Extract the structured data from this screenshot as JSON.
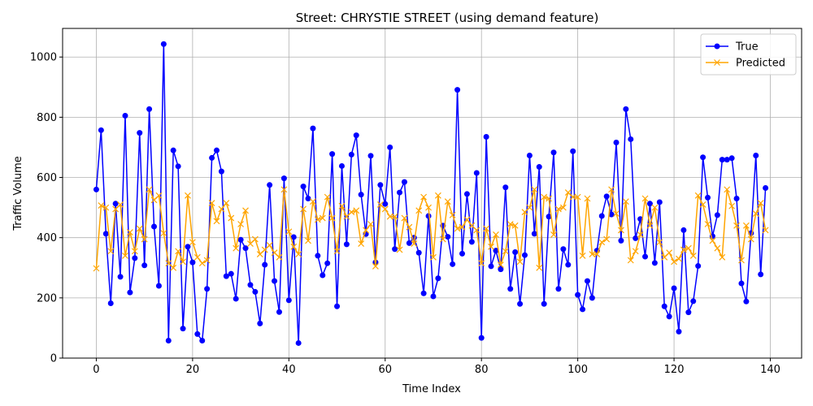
{
  "chart_data": {
    "type": "line",
    "title": "Street: CHRYSTIE STREET (using demand feature)",
    "xlabel": "Time Index",
    "ylabel": "Traffic Volume",
    "xlim": [
      -7,
      146.5
    ],
    "ylim": [
      0,
      1095
    ],
    "xticks": [
      0,
      20,
      40,
      60,
      80,
      100,
      120,
      140
    ],
    "yticks": [
      0,
      200,
      400,
      600,
      800,
      1000
    ],
    "grid": true,
    "legend_position": "top-right",
    "series": [
      {
        "name": "True",
        "color": "#0000ff",
        "marker": "circle",
        "values": [
          560,
          757,
          413,
          182,
          513,
          270,
          805,
          218,
          332,
          748,
          308,
          827,
          437,
          240,
          1043,
          58,
          690,
          637,
          98,
          370,
          318,
          80,
          58,
          230,
          665,
          690,
          620,
          272,
          280,
          197,
          393,
          365,
          243,
          220,
          115,
          310,
          575,
          256,
          153,
          597,
          192,
          402,
          50,
          570,
          530,
          763,
          340,
          275,
          315,
          678,
          172,
          638,
          378,
          676,
          740,
          543,
          412,
          672,
          318,
          575,
          512,
          700,
          362,
          550,
          585,
          382,
          400,
          350,
          215,
          472,
          205,
          265,
          440,
          403,
          312,
          891,
          347,
          545,
          386,
          615,
          67,
          735,
          305,
          357,
          295,
          567,
          230,
          352,
          180,
          342,
          673,
          413,
          635,
          180,
          470,
          683,
          230,
          362,
          310,
          687,
          210,
          162,
          256,
          200,
          357,
          472,
          537,
          477,
          716,
          390,
          827,
          727,
          398,
          462,
          337,
          513,
          316,
          518,
          172,
          138,
          232,
          88,
          425,
          152,
          189,
          306,
          667,
          533,
          405,
          475,
          659,
          659,
          664,
          530,
          248,
          188,
          415,
          673,
          278,
          565
        ]
      },
      {
        "name": "Predicted",
        "color": "#ffa500",
        "marker": "x",
        "values": [
          298,
          507,
          500,
          355,
          495,
          510,
          340,
          418,
          355,
          430,
          395,
          560,
          525,
          540,
          415,
          315,
          300,
          355,
          320,
          540,
          385,
          335,
          315,
          325,
          515,
          455,
          495,
          515,
          465,
          365,
          445,
          490,
          380,
          395,
          345,
          360,
          375,
          350,
          335,
          560,
          420,
          370,
          345,
          495,
          390,
          520,
          460,
          465,
          535,
          465,
          355,
          505,
          470,
          485,
          490,
          380,
          425,
          445,
          305,
          510,
          495,
          470,
          470,
          360,
          465,
          435,
          380,
          490,
          535,
          500,
          335,
          540,
          395,
          520,
          475,
          430,
          435,
          460,
          440,
          425,
          315,
          430,
          370,
          410,
          310,
          355,
          445,
          440,
          320,
          485,
          500,
          560,
          300,
          535,
          530,
          410,
          495,
          500,
          550,
          535,
          535,
          340,
          530,
          345,
          345,
          385,
          395,
          560,
          480,
          425,
          520,
          325,
          355,
          410,
          530,
          440,
          500,
          385,
          335,
          350,
          320,
          330,
          360,
          365,
          340,
          540,
          510,
          445,
          390,
          365,
          335,
          560,
          505,
          440,
          325,
          440,
          395,
          480,
          515,
          425
        ]
      }
    ]
  }
}
